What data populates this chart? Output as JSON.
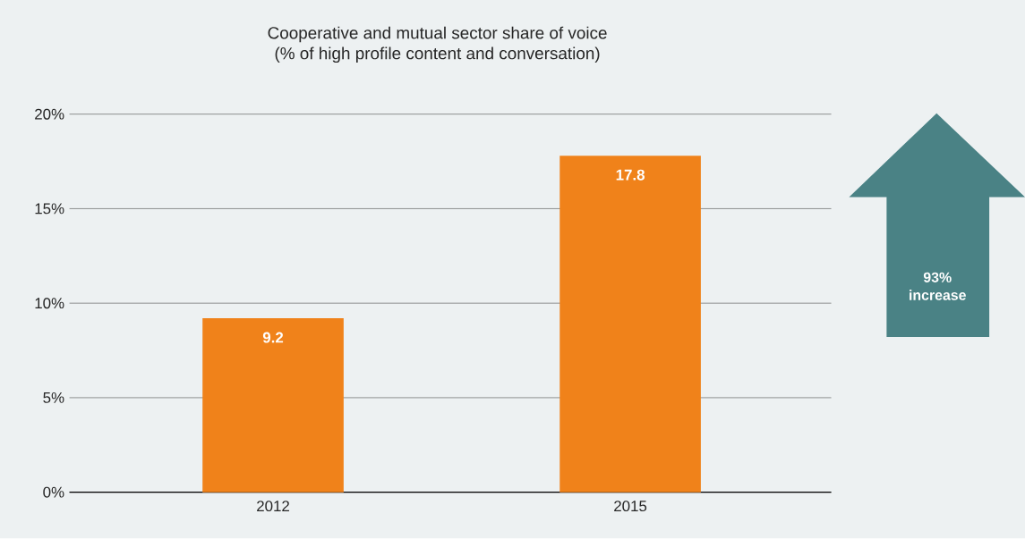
{
  "chart_data": {
    "type": "bar",
    "title": "Cooperative and mutual sector share of voice",
    "subtitle": "(% of high profile content and conversation)",
    "categories": [
      "2012",
      "2015"
    ],
    "values": [
      9.2,
      17.8
    ],
    "color": "#f0821a",
    "ylim": [
      0,
      20
    ],
    "yticks": [
      {
        "value": 0,
        "label": "0%"
      },
      {
        "value": 5,
        "label": "5%"
      },
      {
        "value": 10,
        "label": "10%"
      },
      {
        "value": 15,
        "label": "15%"
      },
      {
        "value": 20,
        "label": "20%"
      }
    ],
    "grid": "y",
    "data_labels": true,
    "annotations": [
      "93% increase"
    ]
  }
}
